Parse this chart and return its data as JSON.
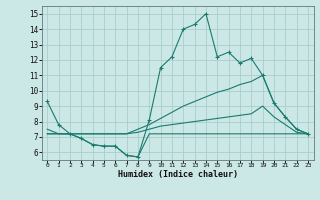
{
  "xlabel": "Humidex (Indice chaleur)",
  "background_color": "#cce8e6",
  "grid_color": "#aacece",
  "line_color": "#1a7a6e",
  "xlim": [
    -0.5,
    23.5
  ],
  "ylim": [
    5.5,
    15.5
  ],
  "xticks": [
    0,
    1,
    2,
    3,
    4,
    5,
    6,
    7,
    8,
    9,
    10,
    11,
    12,
    13,
    14,
    15,
    16,
    17,
    18,
    19,
    20,
    21,
    22,
    23
  ],
  "yticks": [
    6,
    7,
    8,
    9,
    10,
    11,
    12,
    13,
    14,
    15
  ],
  "line1_x": [
    0,
    1,
    2,
    3,
    4,
    5,
    6,
    7,
    8,
    9,
    10,
    11,
    12,
    13,
    14,
    15,
    16,
    17,
    18,
    19,
    20,
    21,
    22,
    23
  ],
  "line1_y": [
    9.3,
    7.8,
    7.2,
    6.9,
    6.5,
    6.4,
    6.4,
    5.8,
    5.7,
    8.1,
    11.5,
    12.2,
    14.0,
    14.3,
    15.0,
    12.2,
    12.5,
    11.8,
    12.1,
    11.0,
    9.2,
    8.3,
    7.5,
    7.2
  ],
  "line2_x": [
    0,
    1,
    2,
    3,
    4,
    5,
    6,
    7,
    8,
    9,
    10,
    11,
    12,
    13,
    14,
    15,
    16,
    17,
    18,
    19,
    20,
    21,
    22,
    23
  ],
  "line2_y": [
    7.5,
    7.2,
    7.2,
    7.2,
    7.2,
    7.2,
    7.2,
    7.2,
    7.5,
    7.8,
    8.2,
    8.6,
    9.0,
    9.3,
    9.6,
    9.9,
    10.1,
    10.4,
    10.6,
    11.0,
    9.2,
    8.3,
    7.5,
    7.2
  ],
  "line3_x": [
    0,
    1,
    2,
    3,
    4,
    5,
    6,
    7,
    8,
    9,
    10,
    11,
    12,
    13,
    14,
    15,
    16,
    17,
    18,
    19,
    20,
    21,
    22,
    23
  ],
  "line3_y": [
    7.2,
    7.2,
    7.2,
    7.2,
    7.2,
    7.2,
    7.2,
    7.2,
    7.3,
    7.5,
    7.7,
    7.8,
    7.9,
    8.0,
    8.1,
    8.2,
    8.3,
    8.4,
    8.5,
    9.0,
    8.3,
    7.8,
    7.3,
    7.2
  ],
  "line4_x": [
    0,
    1,
    2,
    3,
    4,
    5,
    6,
    7,
    8,
    9,
    10,
    11,
    12,
    13,
    14,
    15,
    16,
    17,
    18,
    19,
    20,
    21,
    22,
    23
  ],
  "line4_y": [
    7.2,
    7.2,
    7.2,
    6.9,
    6.5,
    6.4,
    6.4,
    5.8,
    5.7,
    7.2,
    7.2,
    7.2,
    7.2,
    7.2,
    7.2,
    7.2,
    7.2,
    7.2,
    7.2,
    7.2,
    7.2,
    7.2,
    7.2,
    7.2
  ]
}
